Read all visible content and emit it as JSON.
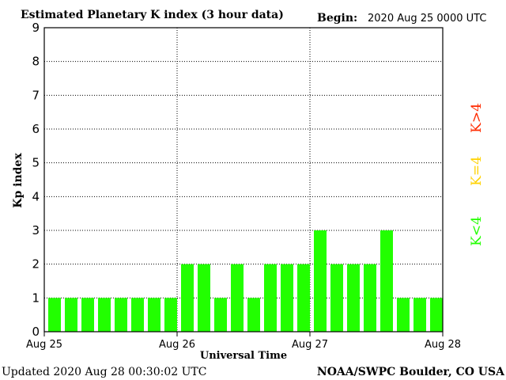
{
  "header": {
    "title": "Estimated Planetary K index (3 hour data)",
    "begin_label": "Begin:",
    "begin_value": "2020 Aug 25 0000 UTC"
  },
  "footer": {
    "updated": "Updated 2020 Aug 28 00:30:02 UTC",
    "source": "NOAA/SWPC Boulder, CO USA"
  },
  "legend": {
    "high": "K>4",
    "equal": "K=4",
    "low": "K<4"
  },
  "colors": {
    "low": "#22ff00",
    "equal": "#ffd200",
    "high": "#ff2a00",
    "grid": "#000000"
  },
  "chart_data": {
    "type": "bar",
    "title": "Estimated Planetary K index (3 hour data)",
    "xlabel": "Universal Time",
    "ylabel": "Kp index",
    "ylim": [
      0,
      9
    ],
    "yticks": [
      "0",
      "1",
      "2",
      "3",
      "4",
      "5",
      "6",
      "7",
      "8",
      "9"
    ],
    "xticks": [
      "Aug 25",
      "Aug 26",
      "Aug 27",
      "Aug 28"
    ],
    "grid": true,
    "values": [
      1,
      1,
      1,
      1,
      1,
      1,
      1,
      1,
      2,
      2,
      1,
      2,
      1,
      2,
      2,
      2,
      3,
      2,
      2,
      2,
      3,
      1,
      1,
      1
    ]
  }
}
